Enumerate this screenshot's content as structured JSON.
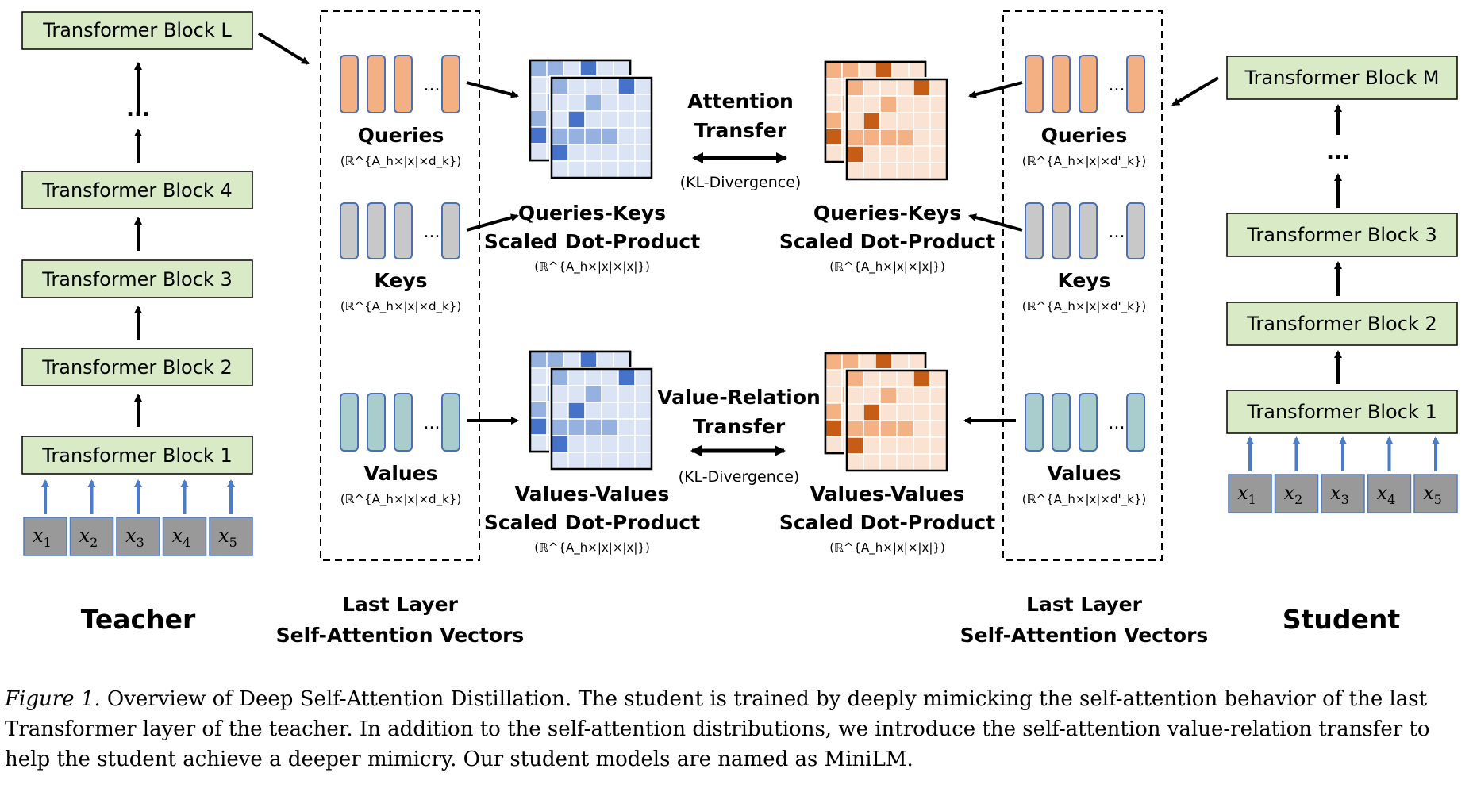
{
  "teacher": {
    "label": "Teacher",
    "blocks": [
      "Transformer Block L",
      "Transformer Block 4",
      "Transformer Block 3",
      "Transformer Block 2",
      "Transformer Block 1"
    ],
    "ellipsis": "...",
    "inputs": [
      "x",
      "x",
      "x",
      "x",
      "x"
    ],
    "input_subscripts": [
      "1",
      "2",
      "3",
      "4",
      "5"
    ]
  },
  "student": {
    "label": "Student",
    "blocks": [
      "Transformer Block M",
      "Transformer Block 3",
      "Transformer Block 2",
      "Transformer Block 1"
    ],
    "ellipsis": "...",
    "inputs": [
      "x",
      "x",
      "x",
      "x",
      "x"
    ],
    "input_subscripts": [
      "1",
      "2",
      "3",
      "4",
      "5"
    ]
  },
  "teacher_vectors": {
    "title_line1": "Last Layer",
    "title_line2": "Self-Attention Vectors",
    "queries": "Queries",
    "queries_dim": "(ℝ^{A_h×|x|×d_k})",
    "keys": "Keys",
    "keys_dim": "(ℝ^{A_h×|x|×d_k})",
    "values": "Values",
    "values_dim": "(ℝ^{A_h×|x|×d_k})"
  },
  "student_vectors": {
    "title_line1": "Last Layer",
    "title_line2": "Self-Attention Vectors",
    "queries": "Queries",
    "queries_dim": "(ℝ^{A_h×|x|×d'_k})",
    "keys": "Keys",
    "keys_dim": "(ℝ^{A_h×|x|×d'_k})",
    "values": "Values",
    "values_dim": "(ℝ^{A_h×|x|×d'_k})"
  },
  "matrices": {
    "qk_line1": "Queries-Keys",
    "qk_line2": "Scaled Dot-Product",
    "qk_dim": "(ℝ^{A_h×|x|×|x|})",
    "vv_line1": "Values-Values",
    "vv_line2": "Scaled Dot-Product",
    "vv_dim": "(ℝ^{A_h×|x|×|x|})"
  },
  "transfer": {
    "attention_line1": "Attention",
    "attention_line2": "Transfer",
    "attention_sub": "(KL-Divergence)",
    "value_line1": "Value-Relation",
    "value_line2": "Transfer",
    "value_sub": "(KL-Divergence)"
  },
  "colors": {
    "block_fill": "#d9ebc6",
    "query_fill": "#f2b083",
    "key_fill": "#c8c8c8",
    "value_fill": "#a9cccc",
    "input_fill": "#999999",
    "input_arrow": "#4a7cc7",
    "blue_dark": "#4673c9",
    "blue_mid": "#95b1e0",
    "blue_light": "#dbe4f4",
    "orange_dark": "#c65d17",
    "orange_mid": "#f4b183",
    "orange_light": "#fbe3d4"
  },
  "caption": {
    "prefix": "Figure 1.",
    "line1": " Overview of Deep Self-Attention Distillation. The student is trained by deeply mimicking the self-attention behavior of the last",
    "line2": "Transformer layer of the teacher. In addition to the self-attention distributions, we introduce the self-attention value-relation transfer to",
    "line3": "help the student achieve a deeper mimicry. Our student models are named as MiniLM."
  }
}
